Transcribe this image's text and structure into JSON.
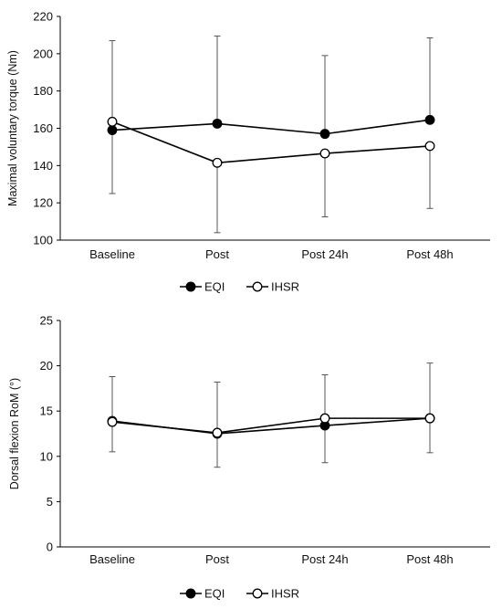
{
  "chart_data": [
    {
      "type": "line",
      "categories": [
        "Baseline",
        "Post",
        "Post 24h",
        "Post 48h"
      ],
      "ylabel": "Maximal voluntary torque (Nm)",
      "xlabel": "",
      "ylim": [
        100,
        220
      ],
      "yticks": [
        "100",
        "120",
        "140",
        "160",
        "180",
        "200",
        "220"
      ],
      "grid": false,
      "legend_position": "bottom-center",
      "series": [
        {
          "name": "EQI",
          "marker": "filled-circle",
          "color": "#000000",
          "values": [
            159,
            162.5,
            157,
            164.5
          ],
          "error_plus": [
            0,
            47,
            42,
            44
          ],
          "error_minus": [
            0,
            0,
            0,
            0
          ]
        },
        {
          "name": "IHSR",
          "marker": "open-circle",
          "color": "#000000",
          "values": [
            163.5,
            141.5,
            146.5,
            150.5
          ],
          "error_plus": [
            43.5,
            0,
            0,
            0
          ],
          "error_minus": [
            38.5,
            37.5,
            34,
            33.5
          ]
        }
      ]
    },
    {
      "type": "line",
      "categories": [
        "Baseline",
        "Post",
        "Post 24h",
        "Post 48h"
      ],
      "ylabel": "Dorsal flexion RoM (°)",
      "xlabel": "",
      "ylim": [
        0,
        25
      ],
      "yticks": [
        "0",
        "5",
        "10",
        "15",
        "20",
        "25"
      ],
      "grid": false,
      "legend_position": "bottom-center",
      "series": [
        {
          "name": "EQI",
          "marker": "filled-circle",
          "color": "#000000",
          "values": [
            13.9,
            12.5,
            13.4,
            14.2
          ],
          "error_plus": [
            0,
            0,
            0,
            0
          ],
          "error_minus": [
            3.4,
            3.7,
            4.1,
            3.8
          ]
        },
        {
          "name": "IHSR",
          "marker": "open-circle",
          "color": "#000000",
          "values": [
            13.8,
            12.6,
            14.2,
            14.2
          ],
          "error_plus": [
            5.0,
            5.6,
            4.8,
            6.1
          ],
          "error_minus": [
            0,
            0,
            0,
            0
          ]
        }
      ]
    }
  ]
}
